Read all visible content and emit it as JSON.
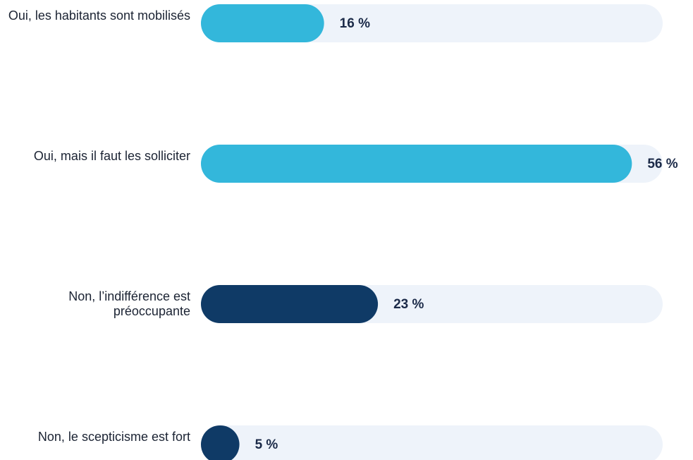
{
  "chart_data": {
    "type": "hbar",
    "categories": [
      "Oui, les habitants sont mobilisés",
      "Oui, mais il faut les solliciter",
      "Non, l’indifférence est préoccupante",
      "Non, le scepticisme est fort"
    ],
    "values": [
      16,
      56,
      23,
      5
    ],
    "value_labels": [
      "16 %",
      "56 %",
      "23 %",
      "5 %"
    ],
    "colors": [
      "#33b7db",
      "#33b7db",
      "#0f3a66",
      "#0f3a66"
    ],
    "track_color": "#eef3fa",
    "xlim": [
      0,
      60
    ]
  }
}
